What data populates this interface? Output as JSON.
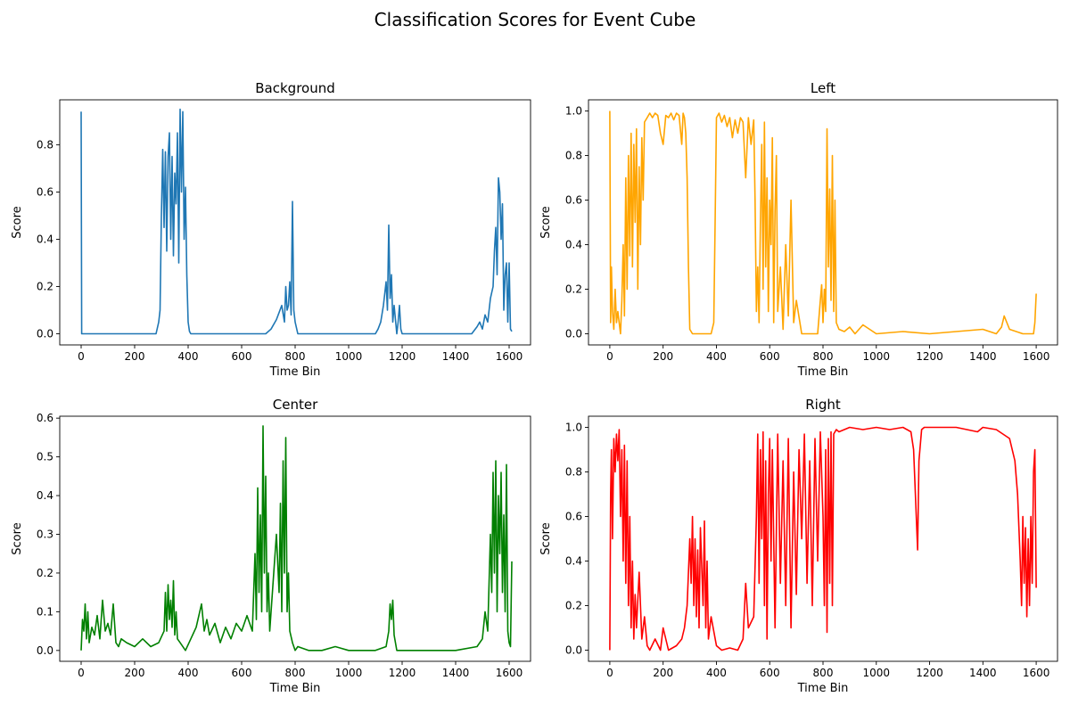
{
  "figure": {
    "title": "Classification Scores for Event Cube"
  },
  "chart_data": [
    {
      "type": "line",
      "title": "Background",
      "xlabel": "Time Bin",
      "ylabel": "Score",
      "color": "#1f77b4",
      "xlim": [
        -80,
        1680
      ],
      "ylim": [
        -0.047,
        0.99
      ],
      "xticks": [
        0,
        200,
        400,
        600,
        800,
        1000,
        1200,
        1400,
        1600
      ],
      "yticks": [
        0.0,
        0.2,
        0.4,
        0.6,
        0.8
      ],
      "ytick_labels": [
        "0.0",
        "0.2",
        "0.4",
        "0.6",
        "0.8"
      ],
      "series": [
        {
          "x": [
            0,
            2,
            4,
            280,
            290,
            295,
            300,
            305,
            310,
            315,
            320,
            325,
            330,
            335,
            340,
            345,
            350,
            355,
            360,
            365,
            370,
            375,
            380,
            385,
            390,
            395,
            400,
            405,
            410,
            500,
            690,
            710,
            730,
            750,
            760,
            765,
            770,
            775,
            780,
            785,
            790,
            795,
            800,
            810,
            850,
            1100,
            1110,
            1120,
            1130,
            1140,
            1145,
            1150,
            1155,
            1160,
            1165,
            1170,
            1180,
            1185,
            1190,
            1195,
            1200,
            1300,
            1460,
            1480,
            1490,
            1500,
            1510,
            1520,
            1530,
            1540,
            1545,
            1550,
            1555,
            1560,
            1565,
            1570,
            1575,
            1580,
            1585,
            1590,
            1595,
            1600,
            1605,
            1610
          ],
          "y": [
            0.94,
            0.0,
            0.0,
            0.0,
            0.05,
            0.1,
            0.5,
            0.78,
            0.45,
            0.77,
            0.35,
            0.75,
            0.85,
            0.4,
            0.75,
            0.33,
            0.68,
            0.55,
            0.85,
            0.3,
            0.95,
            0.6,
            0.94,
            0.4,
            0.62,
            0.25,
            0.05,
            0.01,
            0.0,
            0.0,
            0.0,
            0.02,
            0.06,
            0.12,
            0.05,
            0.2,
            0.1,
            0.12,
            0.22,
            0.08,
            0.56,
            0.1,
            0.05,
            0.0,
            0.0,
            0.0,
            0.02,
            0.05,
            0.12,
            0.22,
            0.1,
            0.46,
            0.15,
            0.25,
            0.05,
            0.12,
            0.0,
            0.05,
            0.12,
            0.02,
            0.0,
            0.0,
            0.0,
            0.03,
            0.05,
            0.02,
            0.08,
            0.05,
            0.15,
            0.2,
            0.35,
            0.45,
            0.25,
            0.66,
            0.6,
            0.4,
            0.55,
            0.1,
            0.25,
            0.3,
            0.05,
            0.3,
            0.02,
            0.01
          ]
        }
      ]
    },
    {
      "type": "line",
      "title": "Left",
      "xlabel": "Time Bin",
      "ylabel": "Score",
      "color": "#ffa500",
      "xlim": [
        -80,
        1680
      ],
      "ylim": [
        -0.05,
        1.05
      ],
      "xticks": [
        0,
        200,
        400,
        600,
        800,
        1000,
        1200,
        1400,
        1600
      ],
      "yticks": [
        0.0,
        0.2,
        0.4,
        0.6,
        0.8,
        1.0
      ],
      "ytick_labels": [
        "0.0",
        "0.2",
        "0.4",
        "0.6",
        "0.8",
        "1.0"
      ],
      "series": [
        {
          "x": [
            0,
            3,
            6,
            10,
            15,
            20,
            25,
            30,
            40,
            45,
            50,
            55,
            60,
            65,
            70,
            75,
            80,
            85,
            90,
            95,
            100,
            105,
            110,
            115,
            120,
            125,
            130,
            140,
            150,
            160,
            170,
            180,
            190,
            200,
            210,
            220,
            230,
            240,
            250,
            260,
            270,
            275,
            280,
            285,
            290,
            295,
            300,
            310,
            350,
            380,
            390,
            395,
            400,
            410,
            420,
            430,
            440,
            450,
            460,
            470,
            480,
            490,
            500,
            510,
            520,
            530,
            540,
            545,
            550,
            555,
            560,
            565,
            570,
            575,
            580,
            585,
            590,
            595,
            600,
            605,
            610,
            615,
            620,
            625,
            630,
            640,
            650,
            660,
            670,
            680,
            690,
            700,
            720,
            780,
            790,
            795,
            800,
            805,
            810,
            815,
            820,
            825,
            830,
            835,
            840,
            845,
            850,
            860,
            880,
            900,
            920,
            950,
            1000,
            1100,
            1200,
            1300,
            1400,
            1450,
            1470,
            1480,
            1500,
            1550,
            1590,
            1595,
            1600
          ],
          "y": [
            1.0,
            0.05,
            0.3,
            0.1,
            0.02,
            0.2,
            0.05,
            0.1,
            0.0,
            0.15,
            0.4,
            0.08,
            0.7,
            0.2,
            0.8,
            0.35,
            0.9,
            0.3,
            0.85,
            0.5,
            0.92,
            0.2,
            0.75,
            0.4,
            0.88,
            0.6,
            0.95,
            0.97,
            0.99,
            0.97,
            0.99,
            0.98,
            0.9,
            0.85,
            0.98,
            0.97,
            0.99,
            0.96,
            0.99,
            0.98,
            0.85,
            0.99,
            0.97,
            0.9,
            0.7,
            0.3,
            0.02,
            0.0,
            0.0,
            0.0,
            0.05,
            0.5,
            0.97,
            0.99,
            0.95,
            0.98,
            0.93,
            0.97,
            0.88,
            0.96,
            0.9,
            0.97,
            0.95,
            0.7,
            0.97,
            0.85,
            0.96,
            0.6,
            0.1,
            0.3,
            0.05,
            0.5,
            0.85,
            0.2,
            0.95,
            0.3,
            0.7,
            0.1,
            0.6,
            0.4,
            0.88,
            0.05,
            0.55,
            0.8,
            0.1,
            0.3,
            0.02,
            0.4,
            0.08,
            0.6,
            0.05,
            0.15,
            0.0,
            0.0,
            0.15,
            0.22,
            0.05,
            0.2,
            0.1,
            0.92,
            0.3,
            0.65,
            0.15,
            0.8,
            0.1,
            0.6,
            0.05,
            0.02,
            0.01,
            0.03,
            0.0,
            0.04,
            0.0,
            0.01,
            0.0,
            0.01,
            0.02,
            0.0,
            0.03,
            0.08,
            0.02,
            0.0,
            0.0,
            0.05,
            0.18
          ]
        }
      ]
    },
    {
      "type": "line",
      "title": "Center",
      "xlabel": "Time Bin",
      "ylabel": "Score",
      "color": "#008000",
      "xlim": [
        -80,
        1680
      ],
      "ylim": [
        -0.028,
        0.605
      ],
      "xticks": [
        0,
        200,
        400,
        600,
        800,
        1000,
        1200,
        1400,
        1600
      ],
      "yticks": [
        0.0,
        0.1,
        0.2,
        0.3,
        0.4,
        0.5,
        0.6
      ],
      "ytick_labels": [
        "0.0",
        "0.1",
        "0.2",
        "0.3",
        "0.4",
        "0.5",
        "0.6"
      ],
      "series": [
        {
          "x": [
            0,
            5,
            10,
            15,
            20,
            25,
            30,
            40,
            50,
            60,
            70,
            80,
            90,
            100,
            110,
            120,
            130,
            140,
            150,
            170,
            200,
            230,
            260,
            290,
            310,
            315,
            320,
            325,
            330,
            335,
            340,
            345,
            350,
            355,
            360,
            370,
            390,
            410,
            430,
            450,
            460,
            470,
            480,
            500,
            520,
            540,
            560,
            580,
            600,
            620,
            640,
            650,
            655,
            660,
            665,
            670,
            675,
            680,
            685,
            690,
            695,
            700,
            705,
            710,
            720,
            730,
            740,
            745,
            750,
            755,
            760,
            765,
            770,
            775,
            780,
            790,
            800,
            810,
            850,
            900,
            950,
            1000,
            1100,
            1140,
            1150,
            1155,
            1160,
            1165,
            1170,
            1180,
            1200,
            1300,
            1400,
            1480,
            1500,
            1510,
            1520,
            1530,
            1535,
            1540,
            1545,
            1550,
            1555,
            1560,
            1565,
            1570,
            1575,
            1580,
            1585,
            1590,
            1595,
            1600,
            1605,
            1610
          ],
          "y": [
            0.0,
            0.08,
            0.05,
            0.12,
            0.03,
            0.1,
            0.02,
            0.06,
            0.04,
            0.09,
            0.03,
            0.13,
            0.05,
            0.07,
            0.04,
            0.12,
            0.02,
            0.01,
            0.03,
            0.02,
            0.01,
            0.03,
            0.01,
            0.02,
            0.05,
            0.15,
            0.05,
            0.17,
            0.08,
            0.13,
            0.06,
            0.18,
            0.04,
            0.1,
            0.03,
            0.02,
            0.0,
            0.03,
            0.06,
            0.12,
            0.05,
            0.08,
            0.04,
            0.07,
            0.02,
            0.06,
            0.03,
            0.07,
            0.05,
            0.09,
            0.05,
            0.25,
            0.08,
            0.42,
            0.15,
            0.35,
            0.1,
            0.58,
            0.2,
            0.45,
            0.1,
            0.2,
            0.05,
            0.1,
            0.2,
            0.3,
            0.15,
            0.38,
            0.1,
            0.49,
            0.2,
            0.55,
            0.1,
            0.2,
            0.05,
            0.02,
            0.0,
            0.01,
            0.0,
            0.0,
            0.01,
            0.0,
            0.0,
            0.01,
            0.05,
            0.12,
            0.08,
            0.13,
            0.04,
            0.0,
            0.0,
            0.0,
            0.0,
            0.01,
            0.03,
            0.1,
            0.05,
            0.3,
            0.15,
            0.46,
            0.2,
            0.49,
            0.1,
            0.4,
            0.25,
            0.46,
            0.15,
            0.35,
            0.1,
            0.48,
            0.05,
            0.02,
            0.01,
            0.23
          ]
        }
      ]
    },
    {
      "type": "line",
      "title": "Right",
      "xlabel": "Time Bin",
      "ylabel": "Score",
      "color": "#ff0000",
      "xlim": [
        -80,
        1680
      ],
      "ylim": [
        -0.05,
        1.05
      ],
      "xticks": [
        0,
        200,
        400,
        600,
        800,
        1000,
        1200,
        1400,
        1600
      ],
      "yticks": [
        0.0,
        0.2,
        0.4,
        0.6,
        0.8,
        1.0
      ],
      "ytick_labels": [
        "0.0",
        "0.2",
        "0.4",
        "0.6",
        "0.8",
        "1.0"
      ],
      "series": [
        {
          "x": [
            0,
            3,
            6,
            10,
            15,
            20,
            25,
            30,
            35,
            40,
            45,
            50,
            55,
            60,
            65,
            70,
            75,
            80,
            85,
            90,
            95,
            100,
            110,
            120,
            130,
            140,
            150,
            170,
            190,
            200,
            220,
            250,
            270,
            280,
            290,
            300,
            305,
            310,
            315,
            320,
            325,
            330,
            335,
            340,
            350,
            355,
            360,
            365,
            370,
            380,
            400,
            420,
            450,
            480,
            500,
            510,
            520,
            540,
            550,
            555,
            560,
            565,
            570,
            575,
            580,
            585,
            590,
            595,
            600,
            605,
            610,
            620,
            630,
            640,
            650,
            660,
            670,
            680,
            690,
            700,
            710,
            720,
            730,
            740,
            750,
            760,
            770,
            780,
            790,
            800,
            805,
            810,
            815,
            820,
            825,
            830,
            835,
            840,
            850,
            860,
            880,
            900,
            950,
            1000,
            1050,
            1100,
            1130,
            1140,
            1150,
            1155,
            1160,
            1170,
            1180,
            1200,
            1300,
            1380,
            1400,
            1450,
            1500,
            1520,
            1530,
            1540,
            1545,
            1550,
            1555,
            1560,
            1565,
            1570,
            1575,
            1580,
            1585,
            1590,
            1595,
            1600
          ],
          "y": [
            0.0,
            0.7,
            0.9,
            0.5,
            0.95,
            0.8,
            0.97,
            0.85,
            0.99,
            0.6,
            0.9,
            0.4,
            0.92,
            0.3,
            0.85,
            0.2,
            0.6,
            0.1,
            0.4,
            0.05,
            0.25,
            0.1,
            0.35,
            0.05,
            0.15,
            0.02,
            0.0,
            0.05,
            0.0,
            0.1,
            0.0,
            0.02,
            0.05,
            0.1,
            0.2,
            0.5,
            0.3,
            0.6,
            0.2,
            0.5,
            0.15,
            0.45,
            0.1,
            0.55,
            0.2,
            0.58,
            0.1,
            0.4,
            0.05,
            0.15,
            0.02,
            0.0,
            0.01,
            0.0,
            0.05,
            0.3,
            0.1,
            0.15,
            0.6,
            0.97,
            0.3,
            0.9,
            0.5,
            0.98,
            0.2,
            0.85,
            0.05,
            0.7,
            0.95,
            0.4,
            0.9,
            0.1,
            0.97,
            0.3,
            0.85,
            0.2,
            0.95,
            0.1,
            0.8,
            0.25,
            0.9,
            0.5,
            0.97,
            0.3,
            0.85,
            0.2,
            0.95,
            0.4,
            0.98,
            0.6,
            0.2,
            0.9,
            0.08,
            0.95,
            0.3,
            0.98,
            0.2,
            0.97,
            0.99,
            0.98,
            0.99,
            1.0,
            0.99,
            1.0,
            0.99,
            1.0,
            0.98,
            0.9,
            0.6,
            0.45,
            0.85,
            0.99,
            1.0,
            1.0,
            1.0,
            0.98,
            1.0,
            0.99,
            0.95,
            0.85,
            0.7,
            0.4,
            0.2,
            0.6,
            0.3,
            0.55,
            0.15,
            0.5,
            0.2,
            0.6,
            0.3,
            0.8,
            0.9,
            0.28
          ]
        }
      ]
    }
  ]
}
